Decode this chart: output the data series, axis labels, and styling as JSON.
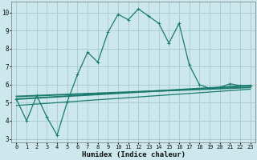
{
  "xlabel": "Humidex (Indice chaleur)",
  "background_color": "#cce8ec",
  "grid_color": "#aacdd4",
  "line_color": "#1a7a6e",
  "xlim": [
    -0.5,
    23.5
  ],
  "ylim": [
    2.8,
    10.6
  ],
  "xticks": [
    0,
    1,
    2,
    3,
    4,
    5,
    6,
    7,
    8,
    9,
    10,
    11,
    12,
    13,
    14,
    15,
    16,
    17,
    18,
    19,
    20,
    21,
    22,
    23
  ],
  "yticks": [
    3,
    4,
    5,
    6,
    7,
    8,
    9,
    10
  ],
  "series1_x": [
    0,
    1,
    2,
    3,
    4,
    5,
    6,
    7,
    8,
    9,
    10,
    11,
    12,
    13,
    14,
    15,
    16,
    17,
    18,
    19,
    20,
    21,
    22,
    23
  ],
  "series1_y": [
    5.2,
    4.0,
    5.4,
    4.2,
    3.2,
    5.05,
    6.55,
    7.8,
    7.25,
    8.9,
    9.9,
    9.6,
    10.2,
    9.8,
    9.4,
    8.3,
    9.4,
    7.1,
    6.0,
    5.8,
    5.85,
    6.05,
    5.95,
    5.95
  ],
  "series2_x": [
    0,
    23
  ],
  "series2_y": [
    5.35,
    5.85
  ],
  "series3_x": [
    0,
    23
  ],
  "series3_y": [
    5.2,
    5.95
  ],
  "series4_x": [
    0,
    23
  ],
  "series4_y": [
    4.85,
    5.75
  ]
}
